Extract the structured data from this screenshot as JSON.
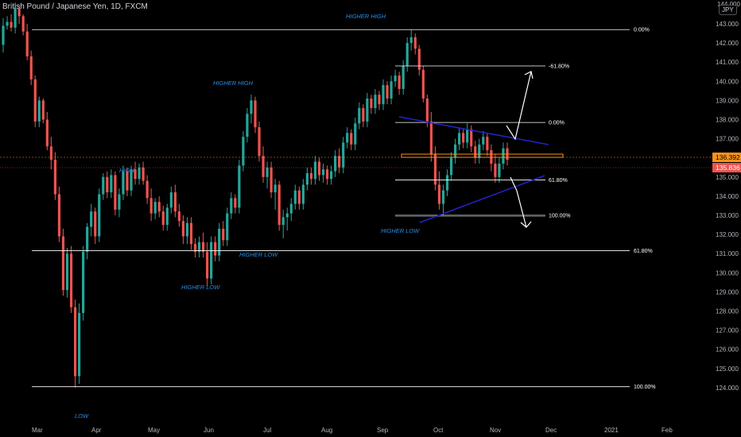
{
  "header": {
    "title": "British Pound / Japanese Yen, 1D, FXCM",
    "currency_button": "JPY",
    "top_cut_label": "144.000"
  },
  "chart_data": {
    "type": "candlestick",
    "symbol": "GBPJPY",
    "interval": "1D",
    "ylim": [
      123.6,
      144.6
    ],
    "price_ticks": [
      "143.000",
      "142.000",
      "141.000",
      "140.000",
      "139.000",
      "138.000",
      "137.000",
      "135.000",
      "134.000",
      "133.000",
      "132.000",
      "131.000",
      "130.000",
      "129.000",
      "128.000",
      "127.000",
      "126.000",
      "125.000",
      "124.000"
    ],
    "time_ticks": [
      "Mar",
      "Apr",
      "May",
      "Jun",
      "Jul",
      "Aug",
      "Sep",
      "Oct",
      "Nov",
      "Dec",
      "2021",
      "Feb"
    ],
    "price_labels": {
      "current": "136.392",
      "last": "135.836",
      "current_color": "#f7931a",
      "last_color": "#ef5350"
    },
    "colors": {
      "up": "#26a69a",
      "down": "#ef5350",
      "wedge": "#2323c8",
      "level": "#ffffff"
    },
    "candles": [
      [
        141.9,
        143.3,
        141.5,
        142.9
      ],
      [
        142.9,
        143.4,
        142.7,
        143.1
      ],
      [
        143.1,
        143.5,
        142.6,
        142.8
      ],
      [
        142.8,
        144.1,
        142.5,
        143.8
      ],
      [
        143.8,
        144.0,
        143.0,
        143.4
      ],
      [
        143.4,
        143.5,
        142.4,
        142.6
      ],
      [
        142.6,
        143.0,
        141.1,
        141.3
      ],
      [
        141.3,
        141.6,
        139.8,
        140.1
      ],
      [
        140.1,
        140.3,
        137.6,
        137.9
      ],
      [
        137.9,
        139.2,
        137.6,
        139.0
      ],
      [
        139.0,
        139.1,
        137.8,
        138.0
      ],
      [
        138.0,
        138.4,
        136.4,
        136.6
      ],
      [
        136.6,
        137.1,
        135.4,
        135.9
      ],
      [
        135.9,
        136.3,
        133.8,
        134.1
      ],
      [
        134.1,
        134.5,
        131.6,
        131.9
      ],
      [
        131.9,
        132.3,
        128.8,
        129.1
      ],
      [
        129.1,
        131.3,
        128.7,
        131.0
      ],
      [
        131.0,
        131.4,
        127.9,
        128.2
      ],
      [
        128.2,
        128.6,
        124.0,
        124.6
      ],
      [
        124.6,
        128.4,
        124.2,
        127.9
      ],
      [
        127.9,
        131.4,
        127.5,
        131.1
      ],
      [
        131.1,
        132.6,
        130.7,
        132.4
      ],
      [
        132.4,
        133.6,
        131.9,
        133.2
      ],
      [
        133.2,
        133.4,
        131.5,
        131.9
      ],
      [
        131.9,
        134.4,
        131.6,
        134.1
      ],
      [
        134.1,
        135.2,
        133.8,
        135.0
      ],
      [
        135.0,
        135.3,
        133.9,
        134.2
      ],
      [
        134.2,
        135.4,
        133.9,
        135.1
      ],
      [
        135.1,
        135.3,
        133.0,
        133.3
      ],
      [
        133.3,
        134.4,
        132.9,
        134.1
      ],
      [
        134.1,
        135.6,
        133.8,
        135.3
      ],
      [
        135.3,
        135.5,
        134.0,
        134.3
      ],
      [
        134.3,
        135.6,
        134.0,
        135.4
      ],
      [
        135.4,
        135.8,
        134.6,
        134.9
      ],
      [
        134.9,
        135.7,
        134.6,
        135.5
      ],
      [
        135.5,
        135.8,
        134.6,
        134.8
      ],
      [
        134.8,
        135.1,
        133.6,
        133.9
      ],
      [
        133.9,
        134.4,
        132.7,
        133.1
      ],
      [
        133.1,
        133.9,
        132.8,
        133.7
      ],
      [
        133.7,
        134.0,
        132.9,
        133.2
      ],
      [
        133.2,
        133.5,
        132.2,
        132.5
      ],
      [
        132.5,
        133.6,
        132.2,
        133.4
      ],
      [
        133.4,
        134.5,
        133.1,
        134.2
      ],
      [
        134.2,
        134.6,
        132.9,
        133.2
      ],
      [
        133.2,
        133.6,
        132.4,
        132.7
      ],
      [
        132.7,
        133.0,
        131.5,
        131.9
      ],
      [
        131.9,
        132.9,
        131.5,
        132.6
      ],
      [
        132.6,
        132.9,
        131.2,
        131.5
      ],
      [
        131.5,
        131.8,
        130.8,
        131.1
      ],
      [
        131.1,
        131.9,
        130.8,
        131.6
      ],
      [
        131.6,
        132.1,
        130.8,
        131.1
      ],
      [
        131.1,
        131.6,
        129.3,
        129.7
      ],
      [
        129.7,
        131.9,
        129.4,
        131.6
      ],
      [
        131.6,
        131.9,
        130.6,
        130.9
      ],
      [
        130.9,
        132.6,
        130.6,
        132.3
      ],
      [
        132.3,
        132.7,
        131.4,
        131.7
      ],
      [
        131.7,
        133.4,
        131.4,
        133.1
      ],
      [
        133.1,
        134.2,
        132.8,
        133.9
      ],
      [
        133.9,
        134.1,
        133.1,
        133.4
      ],
      [
        133.4,
        135.9,
        133.1,
        135.6
      ],
      [
        135.6,
        137.4,
        135.3,
        137.1
      ],
      [
        137.1,
        138.6,
        136.8,
        138.3
      ],
      [
        138.3,
        139.3,
        137.8,
        139.0
      ],
      [
        139.0,
        139.2,
        137.3,
        137.6
      ],
      [
        137.6,
        137.9,
        135.8,
        136.1
      ],
      [
        136.1,
        136.6,
        134.7,
        135.0
      ],
      [
        135.0,
        135.8,
        134.4,
        135.5
      ],
      [
        135.5,
        135.8,
        133.9,
        134.2
      ],
      [
        134.2,
        134.9,
        133.3,
        134.6
      ],
      [
        134.6,
        134.8,
        132.2,
        132.5
      ],
      [
        132.5,
        133.3,
        131.8,
        132.9
      ],
      [
        132.9,
        133.4,
        132.2,
        133.1
      ],
      [
        133.1,
        133.9,
        132.7,
        133.6
      ],
      [
        133.6,
        134.6,
        133.3,
        134.3
      ],
      [
        134.3,
        134.5,
        133.3,
        133.6
      ],
      [
        133.6,
        134.9,
        133.3,
        134.6
      ],
      [
        134.6,
        135.5,
        134.3,
        135.2
      ],
      [
        135.2,
        135.5,
        134.6,
        134.9
      ],
      [
        134.9,
        136.1,
        134.6,
        135.8
      ],
      [
        135.8,
        136.0,
        134.8,
        135.1
      ],
      [
        135.1,
        135.7,
        134.7,
        135.4
      ],
      [
        135.4,
        135.6,
        134.6,
        134.9
      ],
      [
        134.9,
        135.6,
        134.6,
        135.3
      ],
      [
        135.3,
        136.4,
        135.0,
        136.1
      ],
      [
        136.1,
        136.5,
        135.2,
        135.5
      ],
      [
        135.5,
        137.1,
        135.2,
        136.8
      ],
      [
        136.8,
        137.6,
        136.5,
        137.3
      ],
      [
        137.3,
        137.5,
        136.4,
        136.7
      ],
      [
        136.7,
        138.1,
        136.4,
        137.8
      ],
      [
        137.8,
        138.9,
        137.5,
        138.6
      ],
      [
        138.6,
        138.8,
        137.6,
        137.9
      ],
      [
        137.9,
        139.4,
        137.6,
        139.1
      ],
      [
        139.1,
        139.3,
        138.3,
        138.6
      ],
      [
        138.6,
        139.6,
        138.3,
        139.3
      ],
      [
        139.3,
        139.5,
        138.5,
        138.8
      ],
      [
        138.8,
        140.1,
        138.5,
        139.8
      ],
      [
        139.8,
        140.0,
        138.8,
        139.1
      ],
      [
        139.1,
        140.3,
        138.8,
        140.0
      ],
      [
        140.0,
        140.6,
        139.7,
        140.3
      ],
      [
        140.3,
        140.5,
        139.3,
        139.6
      ],
      [
        139.6,
        141.1,
        139.3,
        140.8
      ],
      [
        140.8,
        142.3,
        140.5,
        142.0
      ],
      [
        142.0,
        142.7,
        141.6,
        142.3
      ],
      [
        142.3,
        142.5,
        141.4,
        141.7
      ],
      [
        141.7,
        141.9,
        140.3,
        140.6
      ],
      [
        140.6,
        140.8,
        138.9,
        139.1
      ],
      [
        139.1,
        139.3,
        137.6,
        137.9
      ],
      [
        137.9,
        138.4,
        135.8,
        136.2
      ],
      [
        136.2,
        136.6,
        134.3,
        134.6
      ],
      [
        134.6,
        135.3,
        133.3,
        133.6
      ],
      [
        133.6,
        134.6,
        133.0,
        134.3
      ],
      [
        134.3,
        135.4,
        134.0,
        135.1
      ],
      [
        135.1,
        136.3,
        134.8,
        136.0
      ],
      [
        136.0,
        137.0,
        135.7,
        136.7
      ],
      [
        136.7,
        137.6,
        136.4,
        137.3
      ],
      [
        137.3,
        137.5,
        136.5,
        136.8
      ],
      [
        136.8,
        137.8,
        136.5,
        137.5
      ],
      [
        137.5,
        137.7,
        136.3,
        136.6
      ],
      [
        136.6,
        136.9,
        135.7,
        136.0
      ],
      [
        136.0,
        137.0,
        135.7,
        136.7
      ],
      [
        136.7,
        137.4,
        136.4,
        137.1
      ],
      [
        137.1,
        137.3,
        136.1,
        136.4
      ],
      [
        136.4,
        136.7,
        135.3,
        135.7
      ],
      [
        135.7,
        136.2,
        134.7,
        135.0
      ],
      [
        135.0,
        136.0,
        134.7,
        135.7
      ],
      [
        135.7,
        136.8,
        135.4,
        136.5
      ],
      [
        136.5,
        136.8,
        135.6,
        135.9
      ]
    ],
    "levels": [
      {
        "label": "0.00%",
        "price": 142.7
      },
      {
        "label": "61.80%",
        "price": 131.15
      },
      {
        "label": "100.00%",
        "price": 124.05
      },
      {
        "label": "-61.80%",
        "price": 140.8
      },
      {
        "label": "0.00%",
        "price": 137.85
      },
      {
        "label": "61.80%",
        "price": 134.85
      },
      {
        "label": "100.00%",
        "price": 133.0
      }
    ],
    "annotations": [
      {
        "text": "HIGHER HIGH",
        "price": 143.8
      },
      {
        "text": "HIGHER HIGH",
        "price": 139.9
      },
      {
        "text": "HIGH",
        "price": 135.8
      },
      {
        "text": "HIGHER LOW",
        "price": 131.6
      },
      {
        "text": "HIGHER LOW",
        "price": 130.0
      },
      {
        "text": "HIGHER LOW",
        "price": 132.5
      },
      {
        "text": "LOW",
        "price": 123.4
      }
    ]
  }
}
